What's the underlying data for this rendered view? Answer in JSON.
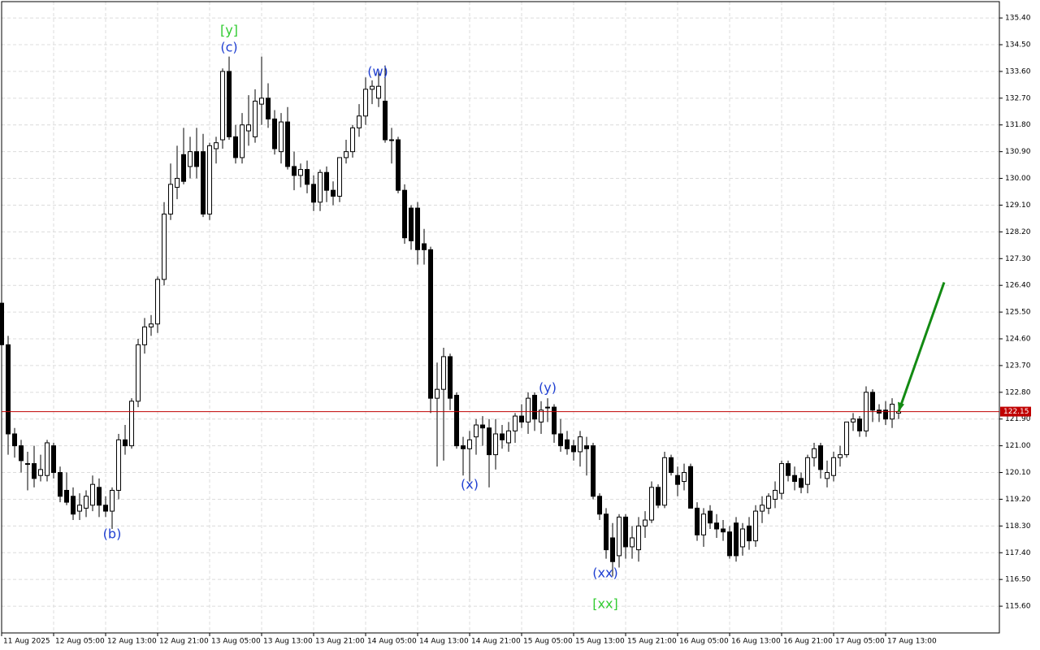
{
  "chart_data": {
    "type": "candlestick",
    "categories": [
      "11 Aug 2025",
      null,
      null,
      null,
      null,
      null,
      null,
      null,
      "12 Aug 05:00",
      null,
      null,
      null,
      null,
      null,
      null,
      null,
      "12 Aug 13:00",
      null,
      null,
      null,
      null,
      null,
      null,
      null,
      "12 Aug 21:00",
      null,
      null,
      null,
      null,
      null,
      null,
      null,
      "13 Aug 05:00",
      null,
      null,
      null,
      null,
      null,
      null,
      null,
      "13 Aug 13:00",
      null,
      null,
      null,
      null,
      null,
      null,
      null,
      "13 Aug 21:00",
      null,
      null,
      null,
      null,
      null,
      null,
      null,
      "14 Aug 05:00",
      null,
      null,
      null,
      null,
      null,
      null,
      null,
      "14 Aug 13:00",
      null,
      null,
      null,
      null,
      null,
      null,
      null,
      "14 Aug 21:00",
      null,
      null,
      null,
      null,
      null,
      null,
      null,
      "15 Aug 05:00",
      null,
      null,
      null,
      null,
      null,
      null,
      null,
      "15 Aug 13:00",
      null,
      null,
      null,
      null,
      null,
      null,
      null,
      "15 Aug 21:00",
      null,
      null,
      null,
      null,
      null,
      null,
      null,
      "16 Aug 05:00",
      null,
      null,
      null,
      null,
      null,
      null,
      null,
      "16 Aug 13:00",
      null,
      null,
      null,
      null,
      null,
      null,
      null,
      "16 Aug 21:00",
      null,
      null,
      null,
      null,
      null,
      null,
      null,
      "17 Aug 05:00",
      null,
      null,
      null,
      null,
      null,
      null,
      null,
      "17 Aug 13:00",
      null,
      null
    ],
    "open": [
      125.8,
      124.4,
      121.4,
      121.0,
      120.4,
      120.4,
      120.0,
      120.0,
      121.0,
      120.1,
      119.5,
      119.3,
      118.8,
      118.9,
      119.0,
      119.6,
      119.0,
      118.8,
      119.5,
      121.2,
      121.0,
      122.5,
      124.4,
      125.0,
      125.1,
      126.6,
      128.8,
      129.7,
      130.8,
      130.4,
      130.9,
      130.9,
      128.8,
      131.0,
      131.3,
      133.6,
      131.4,
      130.7,
      131.6,
      131.4,
      132.5,
      132.7,
      132.0,
      130.9,
      131.9,
      130.4,
      130.1,
      130.3,
      129.8,
      129.2,
      130.2,
      129.6,
      129.4,
      130.7,
      130.9,
      131.7,
      132.1,
      133.0,
      132.7,
      132.6,
      131.3,
      131.3,
      129.6,
      129.0,
      129.0,
      127.8,
      127.6,
      122.6,
      122.9,
      124.0,
      122.7,
      121.0,
      120.9,
      121.3,
      121.7,
      121.6,
      120.7,
      121.4,
      121.1,
      121.5,
      122.0,
      121.8,
      122.7,
      121.8,
      122.3,
      122.3,
      121.4,
      121.2,
      121.0,
      120.8,
      121.0,
      121.0,
      119.3,
      118.7,
      117.9,
      117.3,
      118.6,
      117.6,
      117.5,
      118.3,
      118.5,
      119.6,
      119.0,
      120.6,
      120.0,
      119.8,
      120.3,
      118.9,
      118.0,
      118.8,
      118.4,
      118.2,
      118.1,
      118.4,
      117.6,
      118.3,
      117.8,
      118.8,
      118.9,
      119.2,
      119.4,
      120.4,
      120.0,
      119.9,
      119.7,
      120.6,
      121.0,
      119.9,
      120.0,
      120.6,
      120.7,
      121.8,
      121.9,
      121.5,
      122.8,
      122.2,
      122.2,
      121.9,
      122.1
    ],
    "high": [
      126.3,
      124.7,
      121.6,
      121.2,
      120.8,
      121.0,
      120.7,
      121.2,
      121.1,
      120.3,
      120.1,
      119.6,
      119.4,
      119.5,
      120.0,
      119.9,
      119.3,
      119.6,
      121.4,
      121.7,
      122.6,
      124.6,
      125.3,
      125.4,
      126.7,
      129.2,
      130.5,
      131.1,
      131.7,
      131.4,
      131.7,
      131.5,
      131.2,
      131.4,
      133.7,
      134.1,
      131.8,
      132.2,
      132.8,
      133.0,
      134.1,
      133.2,
      132.3,
      132.2,
      132.4,
      130.9,
      130.5,
      130.6,
      130.1,
      130.3,
      130.4,
      129.9,
      130.7,
      131.3,
      131.8,
      132.5,
      133.4,
      133.3,
      133.6,
      133.8,
      131.7,
      131.4,
      129.8,
      129.1,
      129.2,
      128.3,
      127.7,
      123.8,
      124.3,
      124.1,
      122.8,
      121.3,
      121.5,
      121.9,
      122.0,
      121.9,
      121.9,
      121.7,
      121.8,
      122.1,
      122.4,
      122.8,
      122.8,
      122.5,
      122.6,
      122.4,
      121.9,
      121.5,
      121.2,
      121.5,
      121.3,
      121.1,
      119.4,
      118.9,
      118.4,
      118.7,
      118.7,
      118.3,
      118.6,
      118.8,
      119.8,
      119.7,
      120.8,
      120.7,
      120.3,
      120.4,
      120.4,
      119.1,
      118.9,
      119.0,
      118.7,
      118.5,
      118.3,
      118.6,
      118.4,
      118.6,
      119.0,
      119.3,
      119.4,
      119.8,
      120.5,
      120.5,
      120.3,
      120.1,
      120.7,
      121.1,
      121.1,
      120.5,
      120.8,
      121.0,
      121.8,
      122.1,
      122.0,
      123.0,
      122.9,
      122.4,
      122.5,
      122.6,
      122.4
    ],
    "low": [
      124.2,
      120.7,
      120.6,
      120.1,
      119.5,
      119.6,
      119.8,
      119.8,
      119.9,
      119.1,
      119.0,
      118.5,
      118.5,
      118.6,
      118.8,
      118.6,
      118.6,
      118.2,
      119.2,
      120.7,
      120.9,
      122.3,
      124.1,
      124.7,
      124.8,
      126.4,
      128.6,
      129.3,
      129.8,
      130.0,
      130.0,
      128.7,
      128.6,
      130.5,
      131.0,
      131.3,
      130.5,
      130.5,
      131.1,
      131.2,
      131.8,
      131.7,
      130.8,
      130.5,
      130.3,
      129.6,
      129.7,
      129.5,
      128.9,
      128.9,
      129.2,
      129.1,
      129.2,
      130.5,
      130.7,
      131.4,
      131.8,
      132.5,
      132.4,
      131.2,
      130.5,
      129.5,
      127.8,
      127.6,
      127.1,
      127.1,
      122.1,
      120.3,
      120.5,
      122.2,
      120.9,
      120.0,
      119.8,
      120.7,
      121.0,
      119.6,
      120.2,
      120.9,
      120.8,
      121.1,
      121.6,
      121.4,
      121.5,
      121.4,
      121.8,
      121.1,
      120.8,
      120.7,
      120.5,
      120.3,
      120.0,
      119.2,
      118.5,
      117.2,
      116.6,
      116.9,
      117.2,
      117.2,
      117.1,
      117.9,
      118.4,
      118.9,
      118.9,
      120.0,
      119.3,
      119.5,
      118.9,
      117.8,
      117.6,
      118.2,
      117.9,
      117.8,
      117.2,
      117.1,
      117.3,
      117.5,
      117.6,
      118.4,
      118.7,
      118.9,
      119.2,
      119.8,
      119.5,
      119.4,
      119.4,
      120.3,
      119.9,
      119.6,
      119.8,
      120.3,
      120.6,
      121.5,
      121.3,
      121.3,
      121.8,
      121.8,
      121.7,
      121.6,
      121.9
    ],
    "close": [
      124.4,
      121.4,
      121.0,
      120.5,
      120.4,
      119.9,
      120.2,
      121.1,
      120.1,
      119.3,
      119.1,
      118.7,
      119.0,
      119.3,
      119.7,
      119.0,
      118.8,
      119.5,
      121.2,
      121.0,
      122.5,
      124.4,
      125.0,
      125.1,
      126.6,
      128.8,
      129.8,
      130.0,
      129.9,
      130.9,
      130.4,
      128.8,
      131.1,
      131.2,
      133.6,
      131.4,
      130.7,
      131.8,
      131.8,
      132.6,
      132.7,
      132.0,
      131.0,
      131.9,
      130.4,
      130.1,
      130.3,
      129.8,
      129.2,
      130.2,
      129.6,
      129.4,
      130.7,
      130.9,
      131.7,
      132.1,
      133.0,
      133.1,
      133.1,
      131.3,
      131.3,
      129.6,
      128.0,
      127.9,
      127.6,
      127.6,
      122.6,
      122.9,
      124.0,
      122.6,
      121.0,
      120.9,
      121.2,
      121.7,
      121.6,
      120.7,
      121.4,
      121.2,
      121.5,
      122.0,
      121.8,
      122.6,
      121.9,
      122.2,
      122.3,
      121.4,
      121.0,
      120.9,
      120.8,
      121.3,
      120.9,
      119.3,
      118.7,
      117.5,
      117.1,
      118.6,
      117.6,
      117.9,
      118.3,
      118.5,
      119.6,
      119.0,
      120.6,
      120.1,
      119.7,
      120.1,
      118.9,
      118.0,
      118.7,
      118.4,
      118.2,
      118.1,
      117.3,
      117.3,
      118.2,
      117.8,
      118.8,
      119.0,
      119.3,
      119.5,
      120.4,
      120.0,
      119.8,
      119.6,
      120.6,
      120.9,
      120.2,
      120.1,
      120.6,
      120.7,
      121.8,
      121.9,
      121.5,
      122.8,
      122.2,
      122.1,
      121.9,
      122.4,
      122.15
    ],
    "up_color": "#ffffff",
    "down_color": "#000000",
    "ylim": [
      114.7,
      135.95
    ],
    "yticks": [
      {
        "value": 135.4,
        "label": "135.40"
      },
      {
        "value": 134.5,
        "label": "134.50"
      },
      {
        "value": 133.6,
        "label": "133.60"
      },
      {
        "value": 132.7,
        "label": "132.70"
      },
      {
        "value": 131.8,
        "label": "131.80"
      },
      {
        "value": 130.9,
        "label": "130.90"
      },
      {
        "value": 130.0,
        "label": "130.00"
      },
      {
        "value": 129.1,
        "label": "129.10"
      },
      {
        "value": 128.2,
        "label": "128.20"
      },
      {
        "value": 127.3,
        "label": "127.30"
      },
      {
        "value": 126.4,
        "label": "126.40"
      },
      {
        "value": 125.5,
        "label": "125.50"
      },
      {
        "value": 124.6,
        "label": "124.60"
      },
      {
        "value": 123.7,
        "label": "123.70"
      },
      {
        "value": 122.8,
        "label": "122.80"
      },
      {
        "value": 121.9,
        "label": "121.90"
      },
      {
        "value": 121.0,
        "label": "121.00"
      },
      {
        "value": 120.1,
        "label": "120.10"
      },
      {
        "value": 119.2,
        "label": "119.20"
      },
      {
        "value": 118.3,
        "label": "118.30"
      },
      {
        "value": 117.4,
        "label": "117.40"
      },
      {
        "value": 116.5,
        "label": "116.50"
      },
      {
        "value": 115.6,
        "label": "115.60"
      }
    ],
    "grid": true,
    "last_price": 122.15,
    "last_price_color": "#c00000",
    "forecast_target": 126.5,
    "forecast_color": "#138a13",
    "annotations": [
      {
        "text": "[y]",
        "color": "#33cc33"
      },
      {
        "text": "(c)",
        "color": "#1f3fd1"
      },
      {
        "text": "(w)",
        "color": "#1f3fd1"
      },
      {
        "text": "(b)",
        "color": "#1f3fd1"
      },
      {
        "text": "(x)",
        "color": "#1f3fd1"
      },
      {
        "text": "(y)",
        "color": "#1f3fd1"
      },
      {
        "text": "(xx)",
        "color": "#1f3fd1"
      },
      {
        "text": "[xx]",
        "color": "#33cc33"
      }
    ]
  }
}
